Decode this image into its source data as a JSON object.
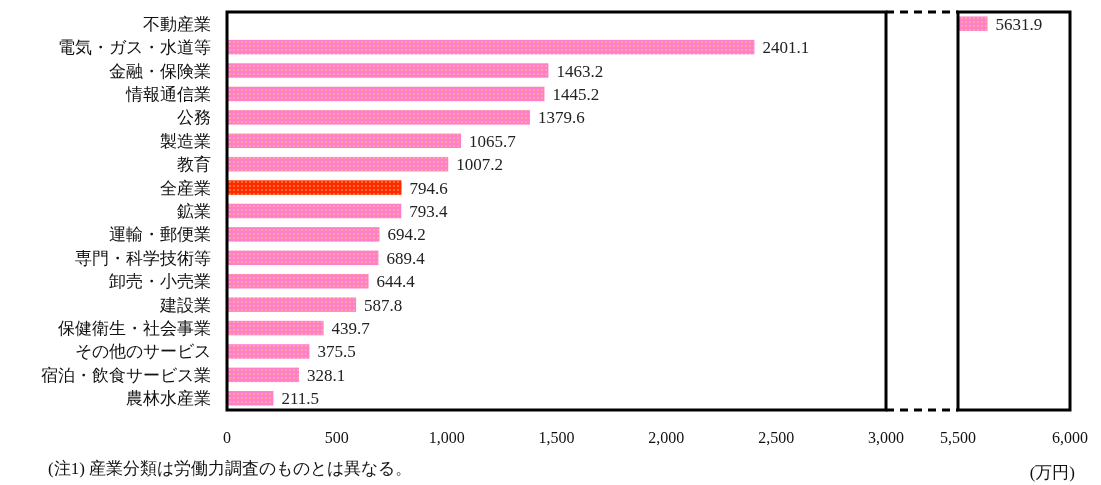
{
  "chart_data": [
    {
      "type": "bar",
      "orientation": "horizontal",
      "data_labels": true,
      "grid": false,
      "categories": [
        "不動産業",
        "電気・ガス・水道等",
        "金融・保険業",
        "情報通信業",
        "公務",
        "製造業",
        "教育",
        "全産業",
        "鉱業",
        "運輸・郵便業",
        "専門・科学技術等",
        "卸売・小売業",
        "建設業",
        "保健衛生・社会事業",
        "その他のサービス",
        "宿泊・飲食サービス業",
        "農林水産業"
      ],
      "values": [
        null,
        2401.1,
        1463.2,
        1445.2,
        1379.6,
        1065.7,
        1007.2,
        794.6,
        793.4,
        694.2,
        689.4,
        644.4,
        587.8,
        439.7,
        375.5,
        328.1,
        211.5
      ],
      "colors": [
        "#ff7fc8",
        "#ff7fc8",
        "#ff7fc8",
        "#ff7fc8",
        "#ff7fc8",
        "#ff7fc8",
        "#ff7fc8",
        "#ff2a00",
        "#ff7fc8",
        "#ff7fc8",
        "#ff7fc8",
        "#ff7fc8",
        "#ff7fc8",
        "#ff7fc8",
        "#ff7fc8",
        "#ff7fc8",
        "#ff7fc8"
      ],
      "xlim": [
        0,
        3000
      ],
      "xticks": [
        0,
        500,
        {
          "value": 1000,
          "label": "1,000"
        },
        {
          "value": 1500,
          "label": "1,500"
        },
        {
          "value": 2000,
          "label": "2,000"
        },
        {
          "value": 2500,
          "label": "2,500"
        },
        {
          "value": 3000,
          "label": "3,000"
        }
      ],
      "annotations": [
        "(注1) 産業分類は労働力調査のものとは異なる。",
        "(万円)"
      ]
    },
    {
      "type": "bar",
      "orientation": "horizontal",
      "data_labels": true,
      "grid": false,
      "tick_labels": "x",
      "categories": [
        null,
        null,
        null,
        null,
        null,
        null,
        null,
        null,
        null,
        null,
        null,
        null,
        null,
        null,
        null,
        null,
        null
      ],
      "values": [
        5631.9,
        null,
        null,
        null,
        null,
        null,
        null,
        null,
        null,
        null,
        null,
        null,
        null,
        null,
        null,
        null,
        null
      ],
      "colors": [
        "#ff7fc8",
        "#ff7fc8",
        "#ff7fc8",
        "#ff7fc8",
        "#ff7fc8",
        "#ff7fc8",
        "#ff7fc8",
        "#ff2a00",
        "#ff7fc8",
        "#ff7fc8",
        "#ff7fc8",
        "#ff7fc8",
        "#ff7fc8",
        "#ff7fc8",
        "#ff7fc8",
        "#ff7fc8",
        "#ff7fc8"
      ],
      "xlim": [
        5500,
        6000
      ],
      "xticks": [
        {
          "value": 5500,
          "label": "5,500"
        },
        {
          "value": 6000,
          "label": "6,000"
        }
      ]
    }
  ]
}
